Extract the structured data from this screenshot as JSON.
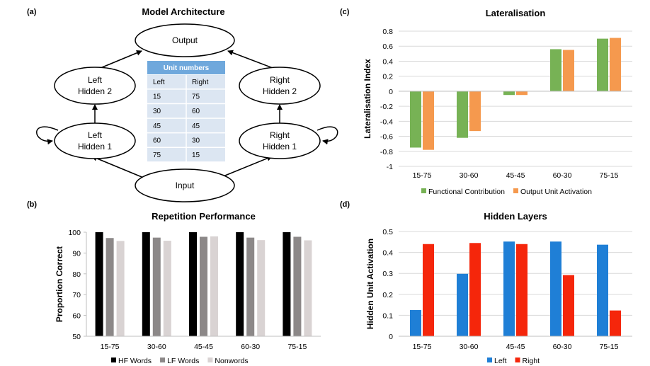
{
  "panels": {
    "a": {
      "label": "(a)",
      "title": "Model Architecture",
      "nodes": {
        "output": "Output",
        "input": "Input",
        "left_hidden_2": [
          "Left",
          "Hidden 2"
        ],
        "left_hidden_1": [
          "Left",
          "Hidden 1"
        ],
        "right_hidden_2": [
          "Right",
          "Hidden 2"
        ],
        "right_hidden_1": [
          "Right",
          "Hidden 1"
        ]
      },
      "table": {
        "title": "Unit numbers",
        "headers": [
          "Left",
          "Right"
        ],
        "rows": [
          [
            "15",
            "75"
          ],
          [
            "30",
            "60"
          ],
          [
            "45",
            "45"
          ],
          [
            "60",
            "30"
          ],
          [
            "75",
            "15"
          ]
        ],
        "header_color": "#6fa8dc",
        "row_color": "#dce6f2"
      }
    },
    "b": {
      "label": "(b)"
    },
    "c": {
      "label": "(c)"
    },
    "d": {
      "label": "(d)"
    }
  },
  "chart_data": [
    {
      "panel": "b",
      "type": "bar",
      "title": "Repetition Performance",
      "xlabel": "",
      "ylabel": "Proportion  Correct",
      "categories": [
        "15-75",
        "30-60",
        "45-45",
        "60-30",
        "75-15"
      ],
      "ylim": [
        50,
        100
      ],
      "yticks": [
        50,
        60,
        70,
        80,
        90,
        100
      ],
      "ytick_labels": [
        "50",
        "60",
        "70",
        "80",
        "90",
        "100"
      ],
      "grid": false,
      "legend_position": "bottom",
      "series": [
        {
          "name": "HF Words",
          "color": "#000000",
          "values": [
            100,
            100,
            100,
            100,
            100
          ]
        },
        {
          "name": "LF Words",
          "color": "#8c8888",
          "values": [
            97.2,
            97.4,
            97.8,
            97.4,
            97.8
          ]
        },
        {
          "name": "Nonwords",
          "color": "#d9d3d3",
          "values": [
            95.8,
            95.9,
            98.0,
            96.2,
            96.1
          ]
        }
      ]
    },
    {
      "panel": "c",
      "type": "bar",
      "title": "Lateralisation",
      "xlabel": "",
      "ylabel": "Lateralisation Index",
      "categories": [
        "15-75",
        "30-60",
        "45-45",
        "60-30",
        "75-15"
      ],
      "ylim": [
        -1,
        0.8
      ],
      "yticks": [
        -1,
        -0.8,
        -0.6,
        -0.4,
        -0.2,
        0,
        0.2,
        0.4,
        0.6,
        0.8
      ],
      "ytick_labels": [
        "-1",
        "-0.8",
        "-0.6",
        "-0.4",
        "-0.2",
        "0",
        "0.2",
        "0.4",
        "0.6",
        "0.8"
      ],
      "grid": true,
      "legend_position": "bottom",
      "series": [
        {
          "name": "Functional Contribution",
          "color": "#77b255",
          "values": [
            -0.75,
            -0.62,
            -0.05,
            0.56,
            0.7
          ]
        },
        {
          "name": "Output Unit Activation",
          "color": "#f5994e",
          "values": [
            -0.78,
            -0.53,
            -0.05,
            0.55,
            0.71
          ]
        }
      ]
    },
    {
      "panel": "d",
      "type": "bar",
      "title": "Hidden Layers",
      "xlabel": "",
      "ylabel": "Hidden Unit Activation",
      "categories": [
        "15-75",
        "30-60",
        "45-45",
        "60-30",
        "75-15"
      ],
      "ylim": [
        0,
        0.5
      ],
      "yticks": [
        0,
        0.1,
        0.2,
        0.3,
        0.4,
        0.5
      ],
      "ytick_labels": [
        "0",
        "0.1",
        "0.2",
        "0.3",
        "0.4",
        "0.5"
      ],
      "grid": true,
      "legend_position": "bottom",
      "series": [
        {
          "name": "Left",
          "color": "#1f7fd6",
          "values": [
            0.125,
            0.298,
            0.452,
            0.452,
            0.437
          ]
        },
        {
          "name": "Right",
          "color": "#f5260b",
          "values": [
            0.44,
            0.445,
            0.44,
            0.292,
            0.123
          ]
        }
      ]
    }
  ]
}
